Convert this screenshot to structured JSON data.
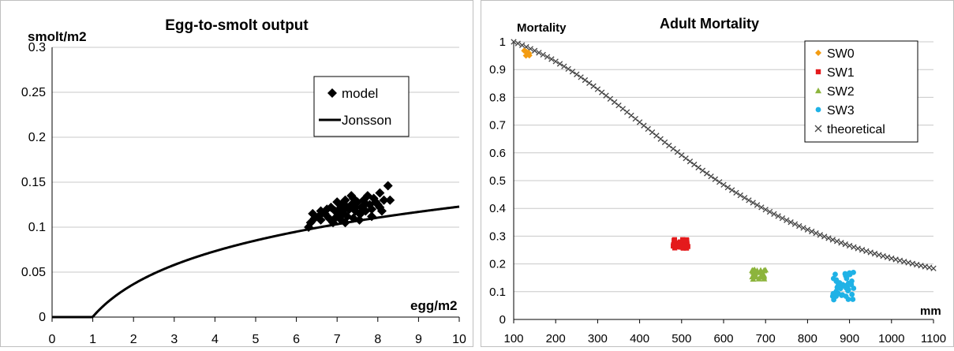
{
  "chart_data": [
    {
      "type": "scatter",
      "title": "Egg-to-smolt output",
      "ylabel": "smolt/m2",
      "xlabel": "egg/m2",
      "xlim": [
        0,
        10
      ],
      "ylim": [
        0,
        0.3
      ],
      "xticks": [
        "0",
        "1",
        "2",
        "3",
        "4",
        "5",
        "6",
        "7",
        "8",
        "9",
        "10"
      ],
      "yticks": [
        "0",
        "0.05",
        "0.1",
        "0.15",
        "0.2",
        "0.25",
        "0.3"
      ],
      "grid": "horizontal",
      "legend_position": "upper-right",
      "series": [
        {
          "name": "model",
          "style": "scatter",
          "marker": "diamond",
          "color": "#000000",
          "points": [
            [
              6.3,
              0.1
            ],
            [
              6.35,
              0.105
            ],
            [
              6.45,
              0.11
            ],
            [
              6.55,
              0.112
            ],
            [
              6.6,
              0.108
            ],
            [
              6.7,
              0.115
            ],
            [
              6.75,
              0.12
            ],
            [
              6.8,
              0.11
            ],
            [
              6.9,
              0.105
            ],
            [
              6.95,
              0.118
            ],
            [
              7.0,
              0.112
            ],
            [
              7.05,
              0.12
            ],
            [
              7.1,
              0.125
            ],
            [
              7.1,
              0.108
            ],
            [
              7.15,
              0.115
            ],
            [
              7.2,
              0.13
            ],
            [
              7.25,
              0.112
            ],
            [
              7.3,
              0.12
            ],
            [
              7.35,
              0.125
            ],
            [
              7.4,
              0.11
            ],
            [
              7.45,
              0.118
            ],
            [
              7.5,
              0.128
            ],
            [
              7.55,
              0.115
            ],
            [
              7.6,
              0.122
            ],
            [
              7.65,
              0.13
            ],
            [
              7.7,
              0.118
            ],
            [
              7.75,
              0.135
            ],
            [
              7.8,
              0.125
            ],
            [
              7.85,
              0.12
            ],
            [
              7.9,
              0.132
            ],
            [
              7.95,
              0.128
            ],
            [
              8.0,
              0.125
            ],
            [
              8.05,
              0.138
            ],
            [
              8.15,
              0.13
            ],
            [
              8.25,
              0.146
            ],
            [
              8.3,
              0.13
            ],
            [
              6.85,
              0.122
            ],
            [
              7.0,
              0.128
            ],
            [
              7.25,
              0.122
            ],
            [
              7.4,
              0.132
            ],
            [
              7.55,
              0.108
            ],
            [
              7.7,
              0.126
            ],
            [
              6.6,
              0.118
            ],
            [
              7.15,
              0.118
            ],
            [
              7.35,
              0.135
            ],
            [
              7.85,
              0.112
            ],
            [
              8.1,
              0.118
            ],
            [
              7.6,
              0.116
            ],
            [
              6.95,
              0.11
            ],
            [
              7.45,
              0.122
            ],
            [
              6.4,
              0.115
            ],
            [
              7.2,
              0.105
            ],
            [
              8.05,
              0.122
            ],
            [
              7.05,
              0.114
            ]
          ]
        },
        {
          "name": "Jonsson",
          "style": "line",
          "color": "#000000",
          "function": "0.0519*ln(x) + 0.00033*x",
          "x_range": [
            0.005,
            10
          ]
        }
      ]
    },
    {
      "type": "scatter",
      "title": "Adult Mortality",
      "ylabel": "Mortality",
      "xlabel": "mm",
      "xlim": [
        100,
        1100
      ],
      "ylim": [
        0,
        1
      ],
      "xticks": [
        "100",
        "200",
        "300",
        "400",
        "500",
        "600",
        "700",
        "800",
        "900",
        "1000",
        "1100"
      ],
      "yticks": [
        "0",
        "0.1",
        "0.2",
        "0.3",
        "0.4",
        "0.5",
        "0.6",
        "0.7",
        "0.8",
        "0.9",
        "1"
      ],
      "grid": "horizontal",
      "legend_position": "upper-right",
      "series": [
        {
          "name": "SW0",
          "marker": "diamond",
          "color": "#f39c12",
          "x_range": [
            125,
            140
          ],
          "y_range": [
            0.945,
            0.97
          ],
          "count": 8
        },
        {
          "name": "SW1",
          "marker": "square",
          "color": "#e41a1c",
          "x_range": [
            478,
            515
          ],
          "y_range": [
            0.255,
            0.29
          ],
          "count": 40
        },
        {
          "name": "SW2",
          "marker": "triangle",
          "color": "#8cb43c",
          "x_range": [
            668,
            700
          ],
          "y_range": [
            0.145,
            0.18
          ],
          "count": 30
        },
        {
          "name": "SW3",
          "marker": "circle",
          "color": "#1fb2e6",
          "x_range": [
            858,
            910
          ],
          "y_range": [
            0.07,
            0.17
          ],
          "count": 40
        },
        {
          "name": "theoretical",
          "marker": "x",
          "color": "#444444",
          "function": "1/(1+(x/585)^2.36) adjusted to equal 1 at x=100",
          "x_range": [
            100,
            1100
          ],
          "step": 10
        }
      ]
    }
  ]
}
